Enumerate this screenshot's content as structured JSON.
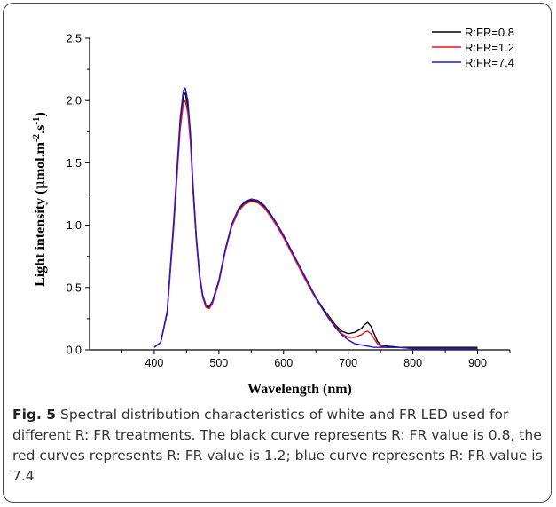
{
  "chart_data": {
    "type": "line",
    "title": "",
    "xlabel": "Wavelength (nm)",
    "ylabel": "Light intensity (μmol.m⁻².s⁻¹)",
    "ylabel_parts": {
      "base": "Light intensity (",
      "mu": "μ",
      "mid1": "mol.m",
      "sup1": "-2",
      "mid2": ".s",
      "sup2": "-1",
      "end": ")"
    },
    "xlim": [
      300,
      950
    ],
    "ylim": [
      0,
      2.5
    ],
    "xticks": [
      400,
      500,
      600,
      700,
      800,
      900
    ],
    "yticks": [
      0.0,
      0.5,
      1.0,
      1.5,
      2.0,
      2.5
    ],
    "ytick_labels": [
      "0.0",
      "0.5",
      "1.0",
      "1.5",
      "2.0",
      "2.5"
    ],
    "legend_position": "top-right",
    "series": [
      {
        "name": "R:FR=0.8",
        "color": "#000000",
        "x": [
          400,
          410,
          420,
          430,
          440,
          445,
          448,
          452,
          456,
          460,
          465,
          470,
          475,
          480,
          485,
          490,
          500,
          510,
          520,
          530,
          540,
          550,
          560,
          570,
          580,
          590,
          600,
          610,
          620,
          630,
          640,
          650,
          660,
          670,
          680,
          690,
          700,
          710,
          720,
          725,
          730,
          735,
          740,
          745,
          750,
          760,
          780,
          800,
          850,
          900
        ],
        "y": [
          0.02,
          0.06,
          0.3,
          1.0,
          1.8,
          2.04,
          2.06,
          1.95,
          1.7,
          1.3,
          0.9,
          0.6,
          0.43,
          0.35,
          0.34,
          0.38,
          0.55,
          0.8,
          1.0,
          1.12,
          1.18,
          1.2,
          1.19,
          1.15,
          1.08,
          1.0,
          0.91,
          0.81,
          0.71,
          0.61,
          0.51,
          0.42,
          0.34,
          0.27,
          0.2,
          0.15,
          0.13,
          0.14,
          0.17,
          0.2,
          0.22,
          0.19,
          0.13,
          0.07,
          0.04,
          0.03,
          0.02,
          0.02,
          0.02,
          0.02
        ]
      },
      {
        "name": "R:FR=1.2",
        "color": "#e8141c",
        "x": [
          400,
          410,
          420,
          430,
          440,
          445,
          448,
          452,
          456,
          460,
          465,
          470,
          475,
          480,
          485,
          490,
          500,
          510,
          520,
          530,
          540,
          550,
          560,
          570,
          580,
          590,
          600,
          610,
          620,
          630,
          640,
          650,
          660,
          670,
          680,
          690,
          700,
          710,
          720,
          725,
          730,
          735,
          740,
          745,
          750,
          760,
          780,
          800,
          850,
          900
        ],
        "y": [
          0.02,
          0.06,
          0.29,
          0.97,
          1.76,
          1.98,
          2.0,
          1.9,
          1.66,
          1.27,
          0.88,
          0.58,
          0.42,
          0.34,
          0.33,
          0.37,
          0.54,
          0.79,
          0.99,
          1.11,
          1.17,
          1.19,
          1.18,
          1.14,
          1.07,
          0.99,
          0.9,
          0.8,
          0.7,
          0.6,
          0.5,
          0.41,
          0.33,
          0.26,
          0.19,
          0.13,
          0.1,
          0.1,
          0.12,
          0.14,
          0.15,
          0.13,
          0.09,
          0.05,
          0.03,
          0.02,
          0.02,
          0.01,
          0.01,
          0.01
        ]
      },
      {
        "name": "R:FR=7.4",
        "color": "#1a1ad6",
        "x": [
          400,
          410,
          420,
          430,
          440,
          445,
          448,
          452,
          456,
          460,
          465,
          470,
          475,
          480,
          485,
          490,
          500,
          510,
          520,
          530,
          540,
          550,
          560,
          570,
          580,
          590,
          600,
          610,
          620,
          630,
          640,
          650,
          660,
          670,
          680,
          690,
          700,
          710,
          720,
          730,
          740,
          760,
          780,
          800,
          850,
          900
        ],
        "y": [
          0.02,
          0.06,
          0.31,
          1.03,
          1.85,
          2.08,
          2.1,
          2.0,
          1.74,
          1.33,
          0.92,
          0.61,
          0.44,
          0.36,
          0.35,
          0.39,
          0.56,
          0.81,
          1.01,
          1.13,
          1.19,
          1.21,
          1.2,
          1.16,
          1.09,
          1.01,
          0.92,
          0.82,
          0.72,
          0.62,
          0.52,
          0.42,
          0.33,
          0.25,
          0.18,
          0.12,
          0.08,
          0.05,
          0.04,
          0.03,
          0.02,
          0.02,
          0.02,
          0.01,
          0.01,
          0.01
        ]
      }
    ]
  },
  "caption": {
    "label": "Fig. 5",
    "text": " Spectral distribution characteristics of white and FR LED used for different R: FR treatments. The black curve represents R: FR value is 0.8, the red curves represents R: FR value is 1.2; blue curve represents R: FR value is 7.4"
  }
}
